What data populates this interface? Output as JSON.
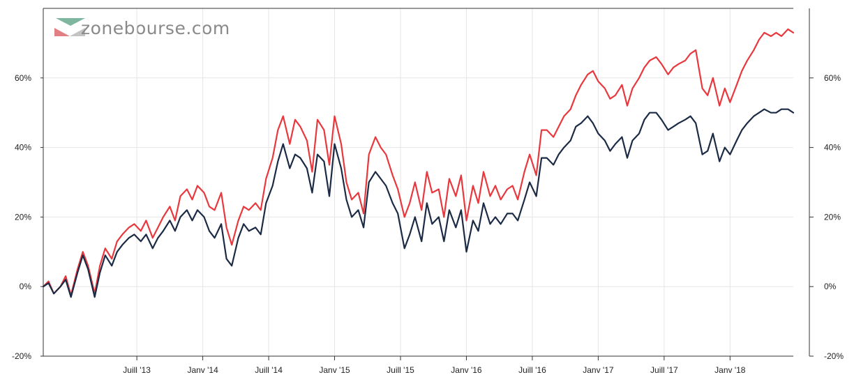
{
  "brand": {
    "name": "zonebourse.com"
  },
  "chart_data": {
    "type": "line",
    "title": "",
    "xlabel": "",
    "ylabel": "",
    "grid": true,
    "xlim": [
      2012.79,
      2018.48
    ],
    "ylim": [
      -20,
      80
    ],
    "y_ticks": [
      {
        "value": -20,
        "label": "-20%"
      },
      {
        "value": 0,
        "label": "0%"
      },
      {
        "value": 20,
        "label": "20%"
      },
      {
        "value": 40,
        "label": "40%"
      },
      {
        "value": 60,
        "label": "60%"
      }
    ],
    "x_ticks": [
      {
        "value": 2013.5,
        "label": "Juill '13"
      },
      {
        "value": 2014.0,
        "label": "Janv '14"
      },
      {
        "value": 2014.5,
        "label": "Juill '14"
      },
      {
        "value": 2015.0,
        "label": "Janv '15"
      },
      {
        "value": 2015.5,
        "label": "Juill '15"
      },
      {
        "value": 2016.0,
        "label": "Janv '16"
      },
      {
        "value": 2016.5,
        "label": "Juill '16"
      },
      {
        "value": 2017.0,
        "label": "Janv '17"
      },
      {
        "value": 2017.5,
        "label": "Juill '17"
      },
      {
        "value": 2018.0,
        "label": "Janv '18"
      }
    ],
    "series": [
      {
        "name": "red-series",
        "color": "#e8383d",
        "x": [
          2012.79,
          2012.83,
          2012.87,
          2012.92,
          2012.96,
          2013.0,
          2013.05,
          2013.09,
          2013.13,
          2013.18,
          2013.22,
          2013.26,
          2013.31,
          2013.35,
          2013.39,
          2013.44,
          2013.48,
          2013.53,
          2013.57,
          2013.62,
          2013.66,
          2013.7,
          2013.75,
          2013.79,
          2013.83,
          2013.88,
          2013.92,
          2013.96,
          2014.01,
          2014.05,
          2014.09,
          2014.14,
          2014.18,
          2014.22,
          2014.27,
          2014.31,
          2014.35,
          2014.4,
          2014.44,
          2014.48,
          2014.53,
          2014.57,
          2014.61,
          2014.66,
          2014.7,
          2014.74,
          2014.79,
          2014.83,
          2014.87,
          2014.92,
          2014.96,
          2015.0,
          2015.05,
          2015.09,
          2015.13,
          2015.18,
          2015.22,
          2015.26,
          2015.31,
          2015.35,
          2015.39,
          2015.44,
          2015.48,
          2015.53,
          2015.57,
          2015.61,
          2015.66,
          2015.7,
          2015.74,
          2015.79,
          2015.83,
          2015.87,
          2015.92,
          2015.96,
          2016.0,
          2016.05,
          2016.09,
          2016.13,
          2016.18,
          2016.22,
          2016.26,
          2016.31,
          2016.35,
          2016.39,
          2016.44,
          2016.48,
          2016.53,
          2016.57,
          2016.61,
          2016.66,
          2016.7,
          2016.74,
          2016.79,
          2016.83,
          2016.87,
          2016.92,
          2016.96,
          2017.0,
          2017.05,
          2017.09,
          2017.13,
          2017.18,
          2017.22,
          2017.26,
          2017.31,
          2017.35,
          2017.39,
          2017.44,
          2017.48,
          2017.53,
          2017.57,
          2017.61,
          2017.66,
          2017.7,
          2017.74,
          2017.79,
          2017.83,
          2017.87,
          2017.92,
          2017.96,
          2018.0,
          2018.05,
          2018.09,
          2018.13,
          2018.18,
          2018.22,
          2018.26,
          2018.31,
          2018.35,
          2018.39,
          2018.44,
          2018.48
        ],
        "values": [
          0,
          1.5,
          -2,
          0,
          3,
          -2.5,
          5,
          10,
          6,
          -2,
          6,
          11,
          8,
          13,
          15,
          17,
          18,
          16,
          19,
          14,
          17,
          20,
          23,
          19,
          26,
          28,
          25,
          29,
          27,
          23,
          22,
          27,
          17,
          12,
          19,
          23,
          22,
          24,
          22,
          31,
          37,
          45,
          49,
          41,
          48,
          46,
          42,
          33,
          48,
          45,
          35,
          49,
          41,
          30,
          25,
          27,
          21,
          38,
          43,
          40,
          38,
          32,
          28,
          20,
          24,
          30,
          22,
          33,
          27,
          28,
          20,
          31,
          26,
          32,
          19,
          29,
          24,
          33,
          26,
          29,
          25,
          28,
          29,
          25,
          33,
          38,
          32,
          45,
          45,
          43,
          46,
          49,
          51,
          55,
          58,
          61,
          62,
          59,
          57,
          54,
          55,
          58,
          52,
          57,
          60,
          63,
          65,
          66,
          64,
          61,
          63,
          64,
          65,
          67,
          68,
          57,
          55,
          60,
          52,
          57,
          53,
          58,
          62,
          65,
          68,
          71,
          73,
          72,
          73,
          72,
          74,
          73
        ],
        "note": "approximate"
      },
      {
        "name": "navy-series",
        "color": "#1c2b45",
        "x": [
          2012.79,
          2012.83,
          2012.87,
          2012.92,
          2012.96,
          2013.0,
          2013.05,
          2013.09,
          2013.13,
          2013.18,
          2013.22,
          2013.26,
          2013.31,
          2013.35,
          2013.39,
          2013.44,
          2013.48,
          2013.53,
          2013.57,
          2013.62,
          2013.66,
          2013.7,
          2013.75,
          2013.79,
          2013.83,
          2013.88,
          2013.92,
          2013.96,
          2014.01,
          2014.05,
          2014.09,
          2014.14,
          2014.18,
          2014.22,
          2014.27,
          2014.31,
          2014.35,
          2014.4,
          2014.44,
          2014.48,
          2014.53,
          2014.57,
          2014.61,
          2014.66,
          2014.7,
          2014.74,
          2014.79,
          2014.83,
          2014.87,
          2014.92,
          2014.96,
          2015.0,
          2015.05,
          2015.09,
          2015.13,
          2015.18,
          2015.22,
          2015.26,
          2015.31,
          2015.35,
          2015.39,
          2015.44,
          2015.48,
          2015.53,
          2015.57,
          2015.61,
          2015.66,
          2015.7,
          2015.74,
          2015.79,
          2015.83,
          2015.87,
          2015.92,
          2015.96,
          2016.0,
          2016.05,
          2016.09,
          2016.13,
          2016.18,
          2016.22,
          2016.26,
          2016.31,
          2016.35,
          2016.39,
          2016.44,
          2016.48,
          2016.53,
          2016.57,
          2016.61,
          2016.66,
          2016.7,
          2016.74,
          2016.79,
          2016.83,
          2016.87,
          2016.92,
          2016.96,
          2017.0,
          2017.05,
          2017.09,
          2017.13,
          2017.18,
          2017.22,
          2017.26,
          2017.31,
          2017.35,
          2017.39,
          2017.44,
          2017.48,
          2017.53,
          2017.57,
          2017.61,
          2017.66,
          2017.7,
          2017.74,
          2017.79,
          2017.83,
          2017.87,
          2017.92,
          2017.96,
          2018.0,
          2018.05,
          2018.09,
          2018.13,
          2018.18,
          2018.22,
          2018.26,
          2018.31,
          2018.35,
          2018.39,
          2018.44,
          2018.48
        ],
        "values": [
          0,
          1,
          -2,
          0,
          2,
          -3,
          4,
          9,
          5,
          -3,
          4,
          9,
          6,
          10,
          12,
          14,
          15,
          13,
          15,
          11,
          14,
          16,
          19,
          16,
          20,
          22,
          19,
          22,
          20,
          16,
          14,
          18,
          8,
          6,
          14,
          18,
          16,
          17,
          15,
          24,
          29,
          36,
          41,
          34,
          38,
          37,
          34,
          27,
          38,
          36,
          26,
          41,
          34,
          25,
          20,
          22,
          17,
          30,
          33,
          31,
          29,
          24,
          21,
          11,
          15,
          20,
          13,
          24,
          18,
          20,
          13,
          22,
          17,
          22,
          10,
          19,
          16,
          24,
          18,
          20,
          18,
          21,
          21,
          19,
          25,
          30,
          26,
          37,
          37,
          35,
          38,
          40,
          42,
          46,
          47,
          49,
          47,
          44,
          42,
          39,
          41,
          43,
          37,
          42,
          44,
          48,
          50,
          50,
          48,
          45,
          46,
          47,
          48,
          49,
          47,
          38,
          39,
          44,
          36,
          40,
          38,
          42,
          45,
          47,
          49,
          50,
          51,
          50,
          50,
          51,
          51,
          50
        ],
        "note": "approximate"
      }
    ]
  }
}
